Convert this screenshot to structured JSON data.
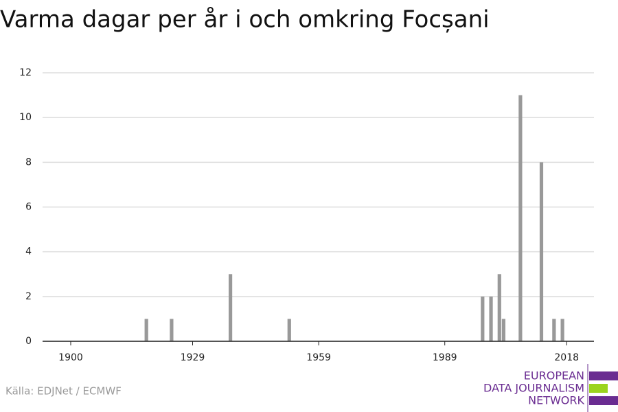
{
  "chart_data": {
    "type": "bar",
    "title": "Varma dagar per år i och omkring Focșani",
    "x": [
      1918,
      1924,
      1938,
      1952,
      1998,
      2000,
      2002,
      2003,
      2007,
      2012,
      2015,
      2017
    ],
    "values": [
      1,
      1,
      3,
      1,
      2,
      2,
      3,
      1,
      11,
      8,
      1,
      1
    ],
    "color": "#999999",
    "xlim": [
      1893.3,
      2024.5
    ],
    "xticks": [
      1900,
      1929,
      1959,
      1989,
      2018
    ],
    "ylim": [
      0,
      12
    ],
    "yticks": [
      0,
      2,
      4,
      6,
      8,
      10,
      12
    ],
    "grid": true,
    "source": "Källa: EDJNet / ECMWF",
    "logo": [
      "EUROPEAN",
      "DATA JOURNALISM",
      "NETWORK"
    ]
  }
}
